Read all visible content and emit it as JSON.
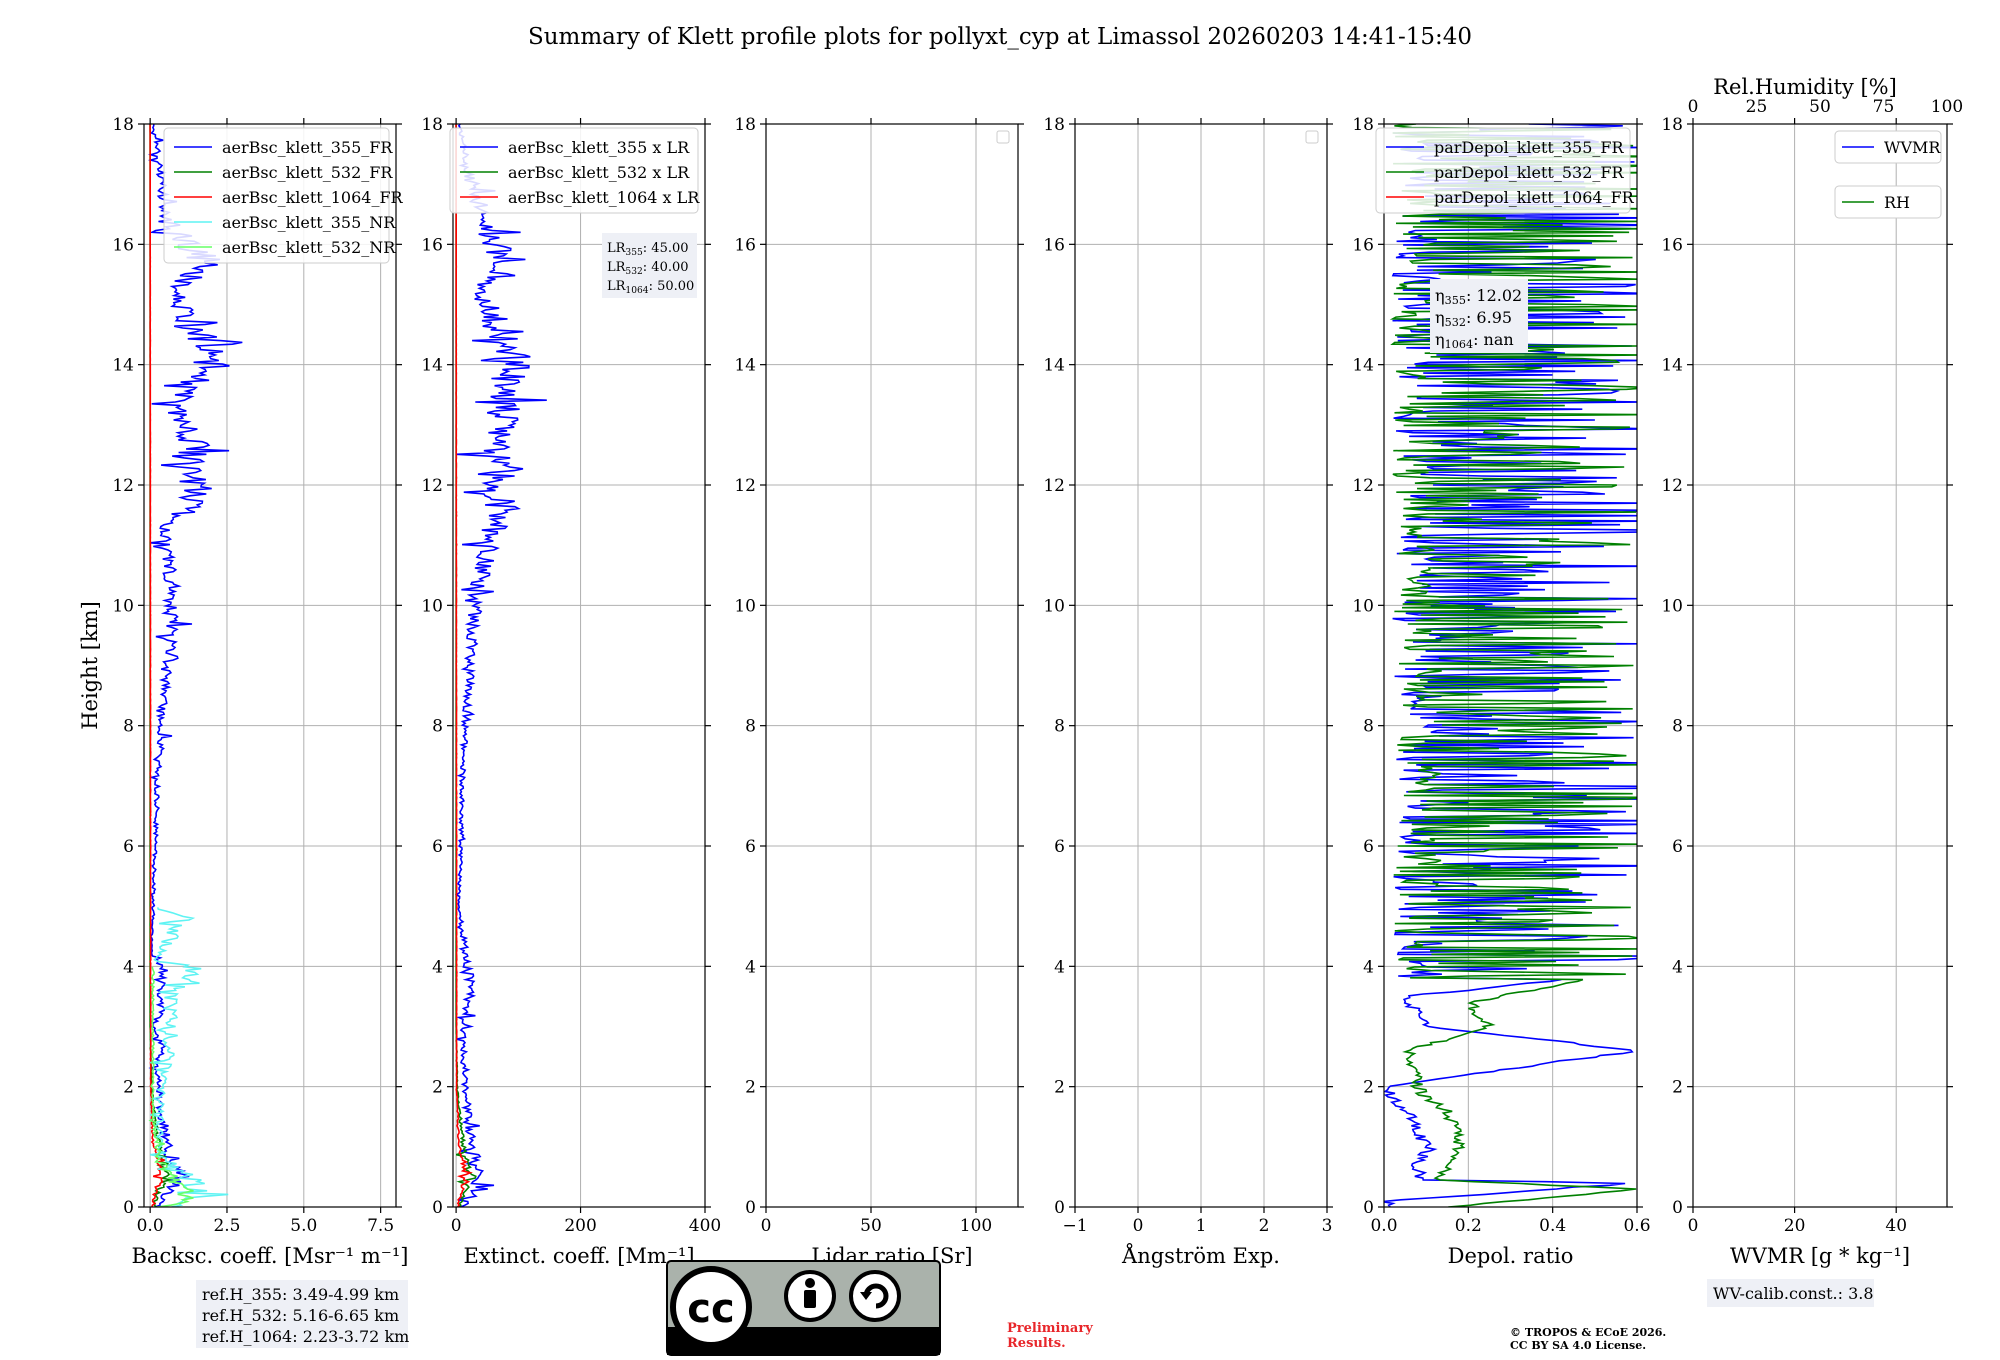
{
  "title": "Summary of Klett profile plots for pollyxt_cyp at Limassol 20260203 14:41-15:40",
  "colors": {
    "c355": "#0000ff",
    "c532": "#008000",
    "c1064": "#ff0000",
    "c355nr": "#5ff3f3",
    "c532nr": "#66ff66",
    "grid": "#b0b0b0",
    "box": "#eef0f6"
  },
  "footer": {
    "ref_box": [
      "ref.H_355: 3.49-4.99 km",
      "ref.H_532: 5.16-6.65 km",
      "ref.H_1064: 2.23-3.72 km"
    ],
    "license_logo": {
      "cc": "cc",
      "by": "BY",
      "sa": "SA"
    },
    "preliminary": [
      "Preliminary",
      "Results."
    ],
    "copyright": [
      "© TROPOS & ECoE 2026.",
      "CC BY SA 4.0 License."
    ],
    "wv_calib": "WV-calib.const.: 3.8"
  },
  "chart_data": [
    {
      "type": "line",
      "panel": "backscatter",
      "xlabel": "Backsc. coeff. [Msr⁻¹ m⁻¹]",
      "ylabel": "Height [km]",
      "xlim": [
        -0.2,
        8.0
      ],
      "ylim": [
        0,
        18
      ],
      "xticks": [
        "0.0",
        "2.5",
        "5.0",
        "7.5"
      ],
      "xtick_values": [
        0,
        2.5,
        5.0,
        7.5
      ],
      "yticks": [
        0,
        2,
        4,
        6,
        8,
        10,
        12,
        14,
        16,
        18
      ],
      "grid": true,
      "legend": "top-right",
      "series": [
        {
          "name": "aerBsc_klett_355_FR",
          "color": "#0000ff"
        },
        {
          "name": "aerBsc_klett_532_FR",
          "color": "#008000"
        },
        {
          "name": "aerBsc_klett_1064_FR",
          "color": "#ff0000"
        },
        {
          "name": "aerBsc_klett_355_NR",
          "color": "#5ff3f3"
        },
        {
          "name": "aerBsc_klett_532_NR",
          "color": "#66ff66"
        }
      ],
      "profiles": {
        "aerBsc_klett_355_FR": [
          [
            0.0,
            0.2
          ],
          [
            0.25,
            0.6
          ],
          [
            0.45,
            0.9
          ],
          [
            0.5,
            1.0
          ],
          [
            1.0,
            0.6
          ],
          [
            1.5,
            0.4
          ],
          [
            2.0,
            0.3
          ],
          [
            2.4,
            0.2
          ],
          [
            2.6,
            0.5
          ],
          [
            3.0,
            0.1
          ],
          [
            3.3,
            0.4
          ],
          [
            3.6,
            0.3
          ],
          [
            3.9,
            0.6
          ],
          [
            4.2,
            0.05
          ],
          [
            5.0,
            0.1
          ],
          [
            6.3,
            0.2
          ],
          [
            7.5,
            0.3
          ],
          [
            8.3,
            0.4
          ],
          [
            9.1,
            0.6
          ],
          [
            10.2,
            0.8
          ],
          [
            11.3,
            0.5
          ],
          [
            11.7,
            1.6
          ],
          [
            12.7,
            1.5
          ],
          [
            13.2,
            0.9
          ],
          [
            14.2,
            2.1
          ],
          [
            15.2,
            0.8
          ],
          [
            15.7,
            2.0
          ],
          [
            16.0,
            1.3
          ],
          [
            16.5,
            0.5
          ],
          [
            17.5,
            0.3
          ],
          [
            18.0,
            0.1
          ]
        ],
        "aerBsc_klett_532_FR": [
          [
            0.0,
            0.1
          ],
          [
            0.3,
            0.3
          ],
          [
            0.5,
            0.6
          ],
          [
            1.0,
            0.3
          ],
          [
            1.5,
            0.15
          ],
          [
            2.0,
            0.05
          ],
          [
            3.0,
            0.0
          ],
          [
            18.0,
            0.0
          ]
        ],
        "aerBsc_klett_1064_FR": [
          [
            0.0,
            0.05
          ],
          [
            0.3,
            0.2
          ],
          [
            0.5,
            0.4
          ],
          [
            1.0,
            0.1
          ],
          [
            2.0,
            0.02
          ],
          [
            18.0,
            0.0
          ]
        ],
        "aerBsc_klett_355_NR": [
          [
            0.0,
            1.0
          ],
          [
            0.2,
            2.1
          ],
          [
            0.5,
            1.2
          ],
          [
            1.0,
            0.3
          ],
          [
            2.0,
            0.4
          ],
          [
            2.5,
            0.6
          ],
          [
            2.8,
            0.7
          ],
          [
            3.6,
            0.7
          ],
          [
            3.9,
            2.1
          ],
          [
            4.1,
            0.2
          ],
          [
            4.8,
            1.1
          ],
          [
            5.0,
            0.1
          ]
        ],
        "aerBsc_klett_532_NR": [
          [
            0.0,
            0.2
          ],
          [
            0.15,
            1.8
          ],
          [
            0.3,
            1.0
          ],
          [
            0.8,
            0.3
          ],
          [
            1.5,
            0.1
          ],
          [
            2.5,
            0.1
          ],
          [
            4.0,
            0.1
          ]
        ]
      }
    },
    {
      "type": "line",
      "panel": "extinction",
      "xlabel": "Extinct. coeff. [Mm⁻¹]",
      "xlim": [
        -5,
        400
      ],
      "ylim": [
        0,
        18
      ],
      "xticks": [
        "0",
        "200",
        "400"
      ],
      "xtick_values": [
        0,
        200,
        400
      ],
      "yticks": [
        0,
        2,
        4,
        6,
        8,
        10,
        12,
        14,
        16,
        18
      ],
      "grid": true,
      "legend": "top-right",
      "series": [
        {
          "name": "aerBsc_klett_355 x LR",
          "color": "#0000ff"
        },
        {
          "name": "aerBsc_klett_532 x LR",
          "color": "#008000"
        },
        {
          "name": "aerBsc_klett_1064 x LR",
          "color": "#ff0000"
        }
      ],
      "lidar_ratio_note": [
        {
          "label": "LR",
          "sub": "355",
          "value": ": 45.00"
        },
        {
          "label": "LR",
          "sub": "532",
          "value": ": 40.00"
        },
        {
          "label": "LR",
          "sub": "1064",
          "value": ": 50.00"
        }
      ],
      "profiles": {
        "aerBsc_klett_355 x LR": [
          [
            0.0,
            10
          ],
          [
            0.3,
            40
          ],
          [
            0.5,
            35
          ],
          [
            1.0,
            28
          ],
          [
            1.5,
            20
          ],
          [
            2.0,
            15
          ],
          [
            3.0,
            12
          ],
          [
            3.6,
            25
          ],
          [
            5.0,
            5
          ],
          [
            7.5,
            12
          ],
          [
            9.1,
            25
          ],
          [
            10.2,
            35
          ],
          [
            11.7,
            75
          ],
          [
            12.7,
            70
          ],
          [
            14.2,
            95
          ],
          [
            15.2,
            40
          ],
          [
            15.7,
            100
          ],
          [
            16.0,
            60
          ],
          [
            17.5,
            15
          ],
          [
            18.0,
            5
          ]
        ],
        "aerBsc_klett_532 x LR": [
          [
            0.0,
            5
          ],
          [
            0.3,
            15
          ],
          [
            0.5,
            25
          ],
          [
            1.0,
            12
          ],
          [
            1.5,
            6
          ],
          [
            2.0,
            2
          ],
          [
            3.0,
            0
          ],
          [
            18.0,
            0
          ]
        ],
        "aerBsc_klett_1064 x LR": [
          [
            0.0,
            2
          ],
          [
            0.3,
            10
          ],
          [
            0.5,
            20
          ],
          [
            1.0,
            5
          ],
          [
            2.0,
            1
          ],
          [
            18.0,
            0
          ]
        ]
      }
    },
    {
      "type": "line",
      "panel": "lidar_ratio",
      "xlabel": "Lidar ratio [Sr]",
      "xlim": [
        0,
        120
      ],
      "ylim": [
        0,
        18
      ],
      "xticks": [
        "0",
        "50",
        "100"
      ],
      "xtick_values": [
        0,
        50,
        100
      ],
      "yticks": [
        0,
        2,
        4,
        6,
        8,
        10,
        12,
        14,
        16,
        18
      ],
      "grid": true,
      "legend": "top-right (empty)",
      "series": []
    },
    {
      "type": "line",
      "panel": "angstrom",
      "xlabel": "Ångström Exp.",
      "xlim": [
        -1,
        3
      ],
      "ylim": [
        0,
        18
      ],
      "xticks": [
        "−1",
        "0",
        "1",
        "2",
        "3"
      ],
      "xtick_values": [
        -1,
        0,
        1,
        2,
        3
      ],
      "yticks": [
        0,
        2,
        4,
        6,
        8,
        10,
        12,
        14,
        16,
        18
      ],
      "grid": true,
      "legend": "top-right (empty)",
      "series": []
    },
    {
      "type": "line",
      "panel": "depol",
      "xlabel": "Depol. ratio",
      "xlim": [
        0.0,
        0.6
      ],
      "ylim": [
        0,
        18
      ],
      "xticks": [
        "0.0",
        "0.2",
        "0.4",
        "0.6"
      ],
      "xtick_values": [
        0.0,
        0.2,
        0.4,
        0.6
      ],
      "yticks": [
        0,
        2,
        4,
        6,
        8,
        10,
        12,
        14,
        16,
        18
      ],
      "grid": true,
      "legend": "top-right",
      "series": [
        {
          "name": "parDepol_klett_355_FR",
          "color": "#0000ff"
        },
        {
          "name": "parDepol_klett_532_FR",
          "color": "#008000"
        },
        {
          "name": "parDepol_klett_1064_FR",
          "color": "#ff0000"
        }
      ],
      "eta_note": [
        {
          "label": "η",
          "sub": "355",
          "value": ": 12.02"
        },
        {
          "label": "η",
          "sub": "532",
          "value": ": 6.95"
        },
        {
          "label": "η",
          "sub": "1064",
          "value": ": nan"
        }
      ],
      "profiles": {
        "parDepol_klett_355_FR": [
          [
            0.0,
            0.01
          ],
          [
            0.1,
            0.01
          ],
          [
            0.4,
            0.6
          ],
          [
            0.45,
            0.09
          ],
          [
            0.7,
            0.08
          ],
          [
            1.0,
            0.11
          ],
          [
            1.2,
            0.08
          ],
          [
            1.5,
            0.07
          ],
          [
            1.8,
            0.02
          ],
          [
            2.0,
            0.01
          ],
          [
            2.2,
            0.2
          ],
          [
            2.6,
            0.6
          ],
          [
            3.0,
            0.1
          ],
          [
            3.5,
            0.05
          ],
          [
            3.9,
            0.6
          ],
          [
            18.0,
            0.6
          ]
        ],
        "parDepol_klett_532_FR": [
          [
            0.0,
            0.15
          ],
          [
            0.3,
            0.6
          ],
          [
            0.45,
            0.12
          ],
          [
            0.7,
            0.16
          ],
          [
            1.0,
            0.18
          ],
          [
            1.3,
            0.17
          ],
          [
            1.6,
            0.15
          ],
          [
            1.8,
            0.1
          ],
          [
            2.0,
            0.08
          ],
          [
            2.4,
            0.07
          ],
          [
            2.6,
            0.06
          ],
          [
            3.0,
            0.25
          ],
          [
            3.4,
            0.2
          ],
          [
            3.8,
            0.5
          ],
          [
            18.0,
            0.6
          ]
        ]
      }
    },
    {
      "type": "line",
      "panel": "wvmr",
      "xlabel": "WVMR [g * kg⁻¹]",
      "xlim": [
        0,
        50
      ],
      "ylim": [
        0,
        18
      ],
      "xticks": [
        "0",
        "20",
        "40"
      ],
      "xtick_values": [
        0,
        20,
        40
      ],
      "x2label": "Rel.Humidity [%]",
      "x2ticks": [
        "0",
        "25",
        "50",
        "75",
        "100"
      ],
      "x2tick_values": [
        0,
        25,
        50,
        75,
        100
      ],
      "yticks": [
        0,
        2,
        4,
        6,
        8,
        10,
        12,
        14,
        16,
        18
      ],
      "grid": true,
      "legend": "top-right",
      "series": [
        {
          "name": "WVMR",
          "color": "#0000ff"
        },
        {
          "name": "RH",
          "color": "#008000"
        }
      ]
    }
  ]
}
